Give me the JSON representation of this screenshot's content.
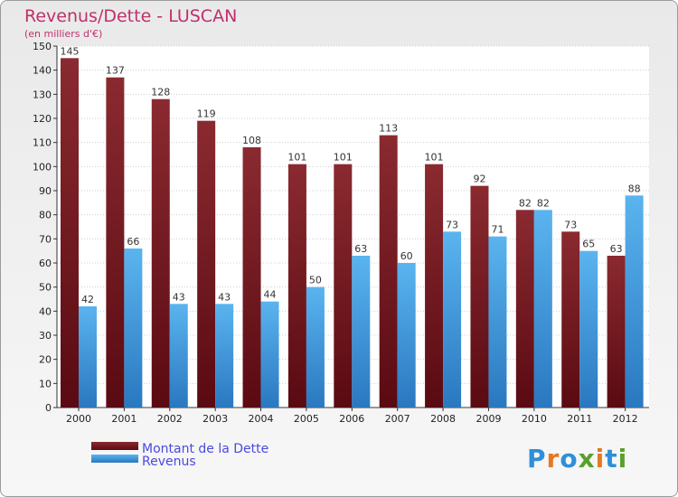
{
  "chart_data": {
    "type": "bar",
    "title": "Revenus/Dette - LUSCAN",
    "subtitle": "(en milliers d'€)",
    "categories": [
      "2000",
      "2001",
      "2002",
      "2003",
      "2004",
      "2005",
      "2006",
      "2007",
      "2008",
      "2009",
      "2010",
      "2011",
      "2012"
    ],
    "series": [
      {
        "name": "Montant de la Dette",
        "color": "#7a1f25",
        "values": [
          145,
          137,
          128,
          119,
          108,
          101,
          101,
          113,
          101,
          92,
          82,
          73,
          63
        ]
      },
      {
        "name": "Revenus",
        "color": "#4aa3e6",
        "values": [
          42,
          66,
          43,
          43,
          44,
          50,
          63,
          60,
          73,
          71,
          82,
          65,
          88
        ]
      }
    ],
    "ylim": [
      0,
      150
    ],
    "yticks": [
      0,
      10,
      20,
      30,
      40,
      50,
      60,
      70,
      80,
      90,
      100,
      110,
      120,
      130,
      140,
      150
    ],
    "grid": true,
    "legend_position": "bottom-left"
  },
  "logo": {
    "text": "Proxiti"
  }
}
